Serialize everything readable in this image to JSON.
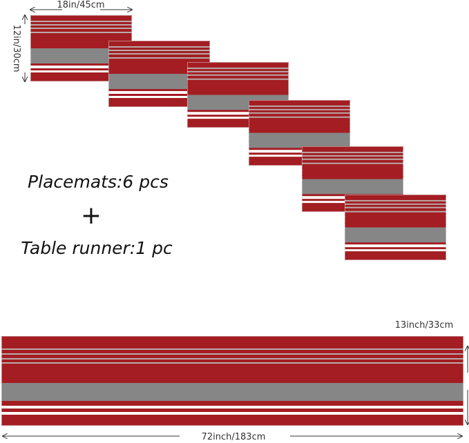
{
  "dimensions": {
    "placemat_width": "18in/45cm",
    "placemat_height": "12in/30cm",
    "runner_height": "13inch/33cm",
    "runner_width": "72inch/183cm"
  },
  "labels": {
    "placemats": "Placemats:6 pcs",
    "plus": "+",
    "runner": "Table runner:1 pc"
  }
}
